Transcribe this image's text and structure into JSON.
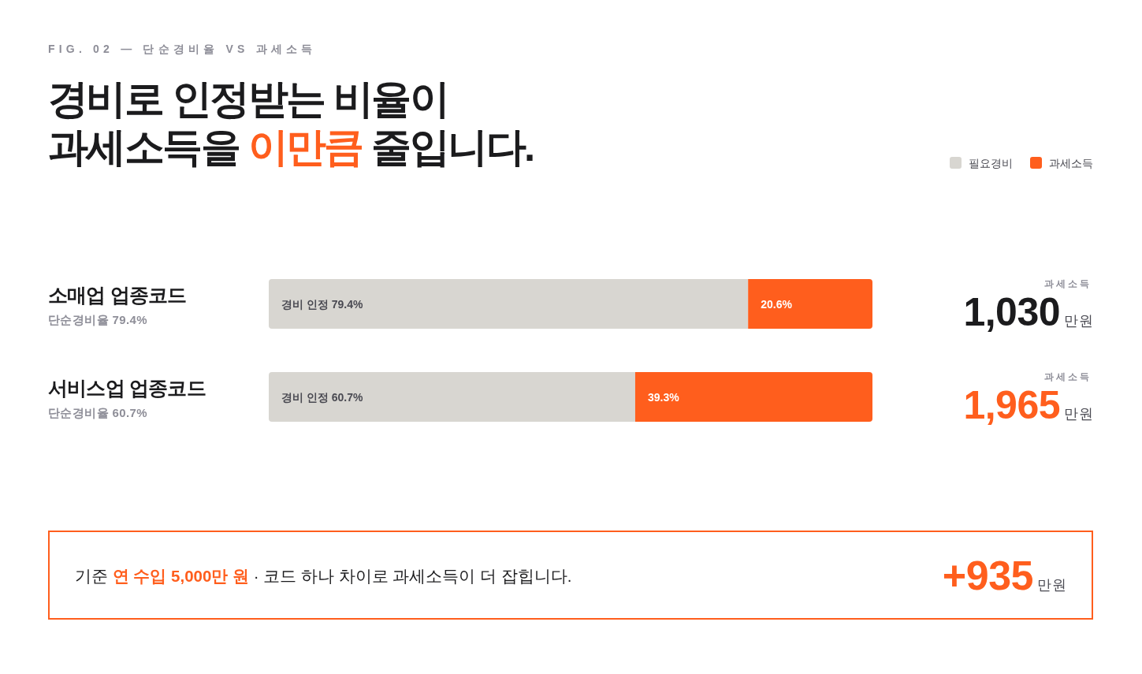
{
  "chart_data": {
    "type": "bar",
    "orientation": "horizontal",
    "stacked": true,
    "subtitle": "FIG. 02 — 단순경비율 VS 과세소득",
    "title": "경비로 인정받는 비율이\n과세소득을 이만큼 줄입니다.",
    "categories": [
      "소매업 업종코드\n단순경비율 79.4%",
      "서비스업 업종코드\n단순경비율 60.7%"
    ],
    "series": [
      {
        "name": "필요경비",
        "color": "#d8d6d1",
        "values": [
          79.4,
          60.7
        ],
        "value_labels": [
          "경비 인정 79.4%",
          "경비 인정 60.7%"
        ]
      },
      {
        "name": "과세소득",
        "color": "#ff5e1d",
        "values": [
          20.6,
          39.3
        ],
        "value_labels": [
          "20.6%",
          "39.3%"
        ]
      }
    ],
    "legend": "top right",
    "annotations": [
      "과세소득\n1,030만원",
      "과세소득\n1,965만원",
      "기준 연 수입 5,000만 원 · 코드 하나 차이로 과세소득이 더 잡힙니다.",
      "+935만원"
    ]
  }
}
